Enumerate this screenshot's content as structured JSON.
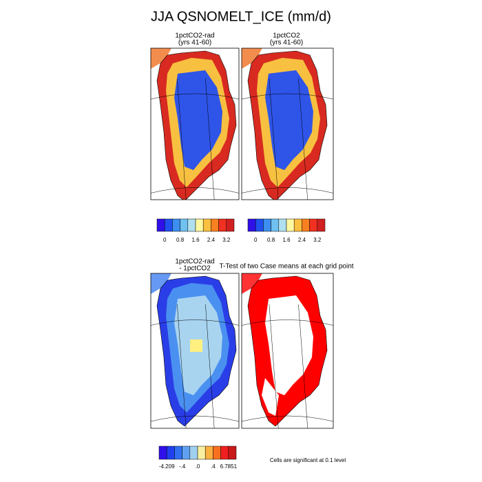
{
  "title": "JJA QSNOMELT_ICE (mm/d)",
  "panels": [
    {
      "title": [
        "1pctCO2-rad",
        "(yrs 41-60)"
      ]
    },
    {
      "title": [
        "1pctCO2",
        "(yrs 41-60)"
      ]
    },
    {
      "title": [
        "1pctCO2-rad",
        "- 1pctCO2"
      ]
    },
    {
      "title": [
        "T-Test of two Case means at each grid point"
      ]
    }
  ],
  "colorbars": [
    {
      "colors": [
        "#3010e8",
        "#2050f0",
        "#3c8ef0",
        "#70c0f0",
        "#b0e0f0",
        "#fff8a0",
        "#fcc040",
        "#f88020",
        "#f03020",
        "#d02020"
      ],
      "labels": [
        "0",
        "0.8",
        "1.6",
        "2.4",
        "3.2"
      ]
    },
    {
      "colors": [
        "#3010e8",
        "#2050f0",
        "#3c8ef0",
        "#70c0f0",
        "#b0e0f0",
        "#fff8a0",
        "#fcc040",
        "#f88020",
        "#f03020",
        "#d02020"
      ],
      "labels": [
        "0",
        "0.8",
        "1.6",
        "2.4",
        "3.2"
      ]
    },
    {
      "colors": [
        "#3010e8",
        "#2040f0",
        "#3070f0",
        "#60a0f0",
        "#a0d0f0",
        "#f8f0a0",
        "#fcb040",
        "#f87020",
        "#f02020",
        "#c81818"
      ],
      "labels": [
        "-4.209",
        "-.4",
        ".0",
        ".4",
        "6.7851"
      ]
    }
  ],
  "note": "Cells are significant at 0.1 level"
}
